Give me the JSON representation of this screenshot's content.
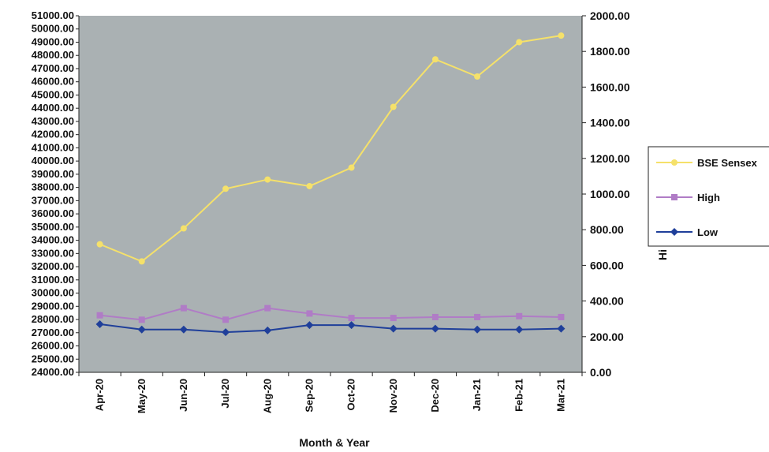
{
  "chart_data": {
    "type": "line",
    "title": "",
    "xlabel": "Month & Year",
    "ylabel_left": "",
    "ylabel_right": "Hi",
    "categories": [
      "Apr-20",
      "May-20",
      "Jun-20",
      "Jul-20",
      "Aug-20",
      "Sep-20",
      "Oct-20",
      "Nov-20",
      "Dec-20",
      "Jan-21",
      "Feb-21",
      "Mar-21"
    ],
    "y_left": {
      "min": 24000,
      "max": 51000,
      "step": 1000,
      "ticks": [
        "24000.00",
        "25000.00",
        "26000.00",
        "27000.00",
        "28000.00",
        "29000.00",
        "30000.00",
        "31000.00",
        "32000.00",
        "33000.00",
        "34000.00",
        "35000.00",
        "36000.00",
        "37000.00",
        "38000.00",
        "39000.00",
        "40000.00",
        "41000.00",
        "42000.00",
        "43000.00",
        "44000.00",
        "45000.00",
        "46000.00",
        "47000.00",
        "48000.00",
        "49000.00",
        "50000.00",
        "51000.00"
      ]
    },
    "y_right": {
      "min": 0,
      "max": 2000,
      "step": 200,
      "ticks": [
        "0.00",
        "200.00",
        "400.00",
        "600.00",
        "800.00",
        "1000.00",
        "1200.00",
        "1400.00",
        "1600.00",
        "1800.00",
        "2000.00"
      ]
    },
    "series": [
      {
        "name": "BSE Sensex",
        "axis": "left",
        "color": "#f5e16a",
        "marker": "circle",
        "values": [
          33700,
          32400,
          34900,
          37900,
          38600,
          38100,
          39500,
          44100,
          47700,
          46400,
          49000,
          49500
        ]
      },
      {
        "name": "High",
        "axis": "right",
        "color": "#b07cc6",
        "marker": "square",
        "values": [
          320,
          295,
          360,
          295,
          360,
          330,
          305,
          305,
          310,
          310,
          315,
          310
        ]
      },
      {
        "name": "Low",
        "axis": "right",
        "color": "#1f3f9a",
        "marker": "diamond",
        "values": [
          270,
          240,
          240,
          225,
          235,
          265,
          265,
          245,
          245,
          240,
          240,
          245
        ]
      }
    ],
    "legend": {
      "placement": "right"
    },
    "plot_background": "#aab1b3",
    "grid": false
  }
}
